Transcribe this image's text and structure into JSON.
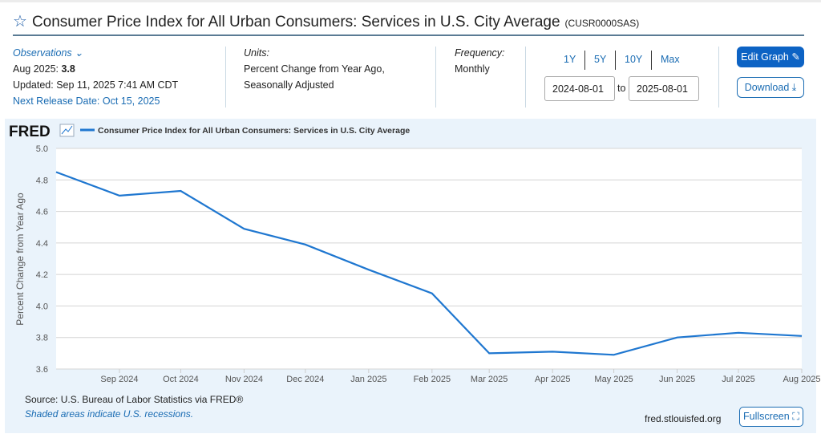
{
  "header": {
    "title": "Consumer Price Index for All Urban Consumers: Services in U.S. City Average",
    "series_id": "(CUSR0000SAS)"
  },
  "observations": {
    "label": "Observations",
    "latest_label": "Aug 2025:",
    "latest_value": "3.8",
    "updated": "Updated: Sep 11, 2025 7:41 AM CDT",
    "next_release": "Next Release Date: Oct 15, 2025"
  },
  "units": {
    "label": "Units:",
    "line1": "Percent Change from Year Ago,",
    "line2": "Seasonally Adjusted"
  },
  "frequency": {
    "label": "Frequency:",
    "value": "Monthly"
  },
  "ranges": [
    "1Y",
    "5Y",
    "10Y",
    "Max"
  ],
  "dates": {
    "start": "2024-08-01",
    "to": "to",
    "end": "2025-08-01"
  },
  "buttons": {
    "edit": "Edit Graph",
    "download": "Download",
    "fullscreen": "Fullscreen"
  },
  "footer": {
    "source": "Source: U.S. Bureau of Labor Statistics via FRED®",
    "recessions": "Shaded areas indicate U.S. recessions.",
    "site": "fred.stlouisfed.org"
  },
  "logo": "FRED",
  "colors": {
    "line": "#1f77d0",
    "accent": "#0d63c4"
  },
  "chart_data": {
    "type": "line",
    "title": "",
    "legend": [
      "Consumer Price Index for All Urban Consumers: Services in U.S. City Average"
    ],
    "legend_position": "top-left",
    "xlabel": "",
    "ylabel": "Percent Change from Year Ago",
    "ylim": [
      3.6,
      5.0
    ],
    "yticks": [
      "3.6",
      "3.8",
      "4.0",
      "4.2",
      "4.4",
      "4.6",
      "4.8",
      "5.0"
    ],
    "xticks": [
      "Sep 2024",
      "Oct 2024",
      "Nov 2024",
      "Dec 2024",
      "Jan 2025",
      "Feb 2025",
      "Mar 2025",
      "Apr 2025",
      "May 2025",
      "Jun 2025",
      "Jul 2025",
      "Aug 2025"
    ],
    "grid": true,
    "x": [
      "2024-08-01",
      "2024-09-01",
      "2024-10-01",
      "2024-11-01",
      "2024-12-01",
      "2025-01-01",
      "2025-02-01",
      "2025-03-01",
      "2025-04-01",
      "2025-05-01",
      "2025-06-01",
      "2025-07-01",
      "2025-08-01"
    ],
    "series": [
      {
        "name": "CUSR0000SAS",
        "values": [
          4.85,
          4.7,
          4.73,
          4.49,
          4.39,
          4.23,
          4.08,
          3.7,
          3.71,
          3.69,
          3.8,
          3.83,
          3.81
        ]
      }
    ]
  }
}
